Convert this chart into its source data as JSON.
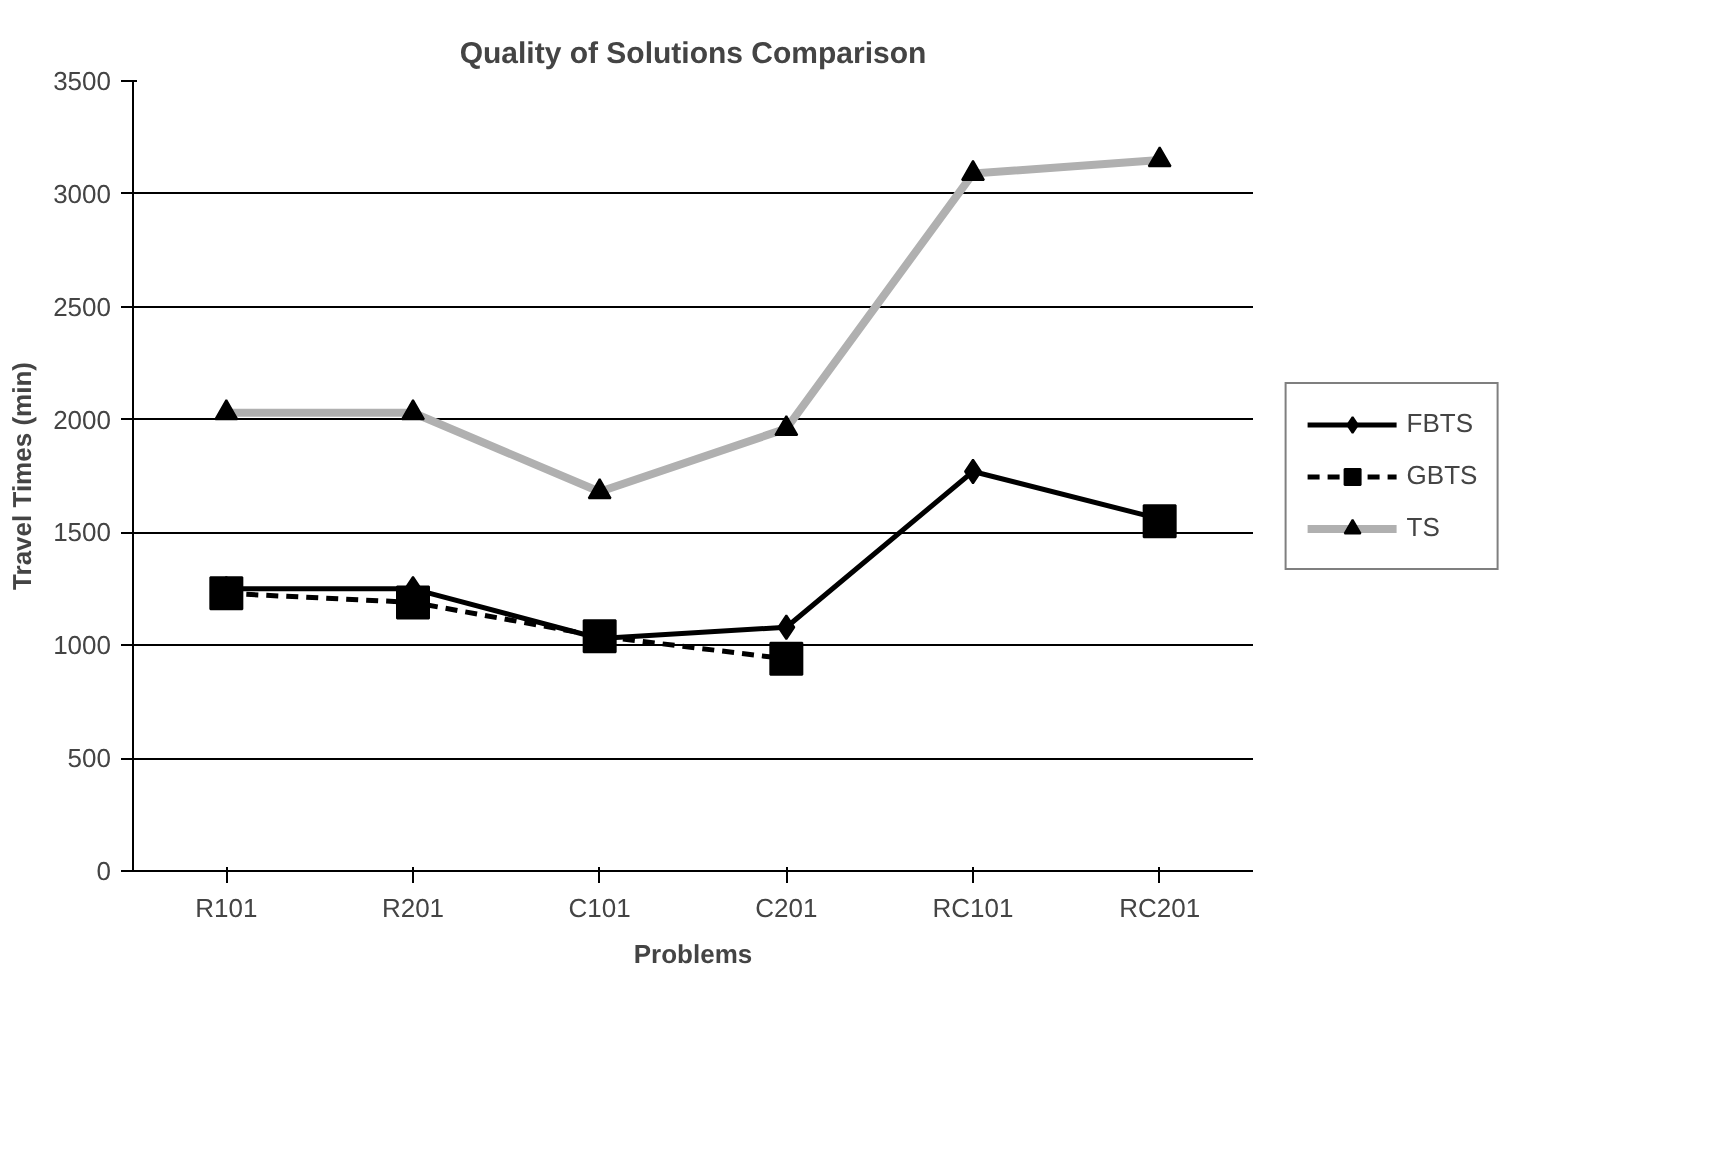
{
  "chart_data": {
    "type": "line",
    "title": "Quality of Solutions Comparison",
    "xlabel": "Problems",
    "ylabel": "Travel Times (min)",
    "categories": [
      "R101",
      "R201",
      "C101",
      "C201",
      "RC101",
      "RC201"
    ],
    "series": [
      {
        "name": "FBTS",
        "color": "#000000",
        "values": [
          1250,
          1250,
          1030,
          1080,
          1770,
          1560
        ],
        "marker": "diamond",
        "line_style": "solid"
      },
      {
        "name": "GBTS",
        "color": "#000000",
        "values": [
          1230,
          1190,
          1040,
          940,
          null,
          1550
        ],
        "marker": "square",
        "line_style": "dashed"
      },
      {
        "name": "TS",
        "color": "#b0b0b0",
        "values": [
          2030,
          2030,
          1680,
          1960,
          3090,
          3150
        ],
        "marker": "triangle",
        "line_style": "solid"
      }
    ],
    "ylim": [
      0,
      3500
    ],
    "yticks": [
      0,
      500,
      1000,
      1500,
      2000,
      2500,
      3000,
      3500
    ],
    "grid": "y",
    "legend": "right"
  }
}
